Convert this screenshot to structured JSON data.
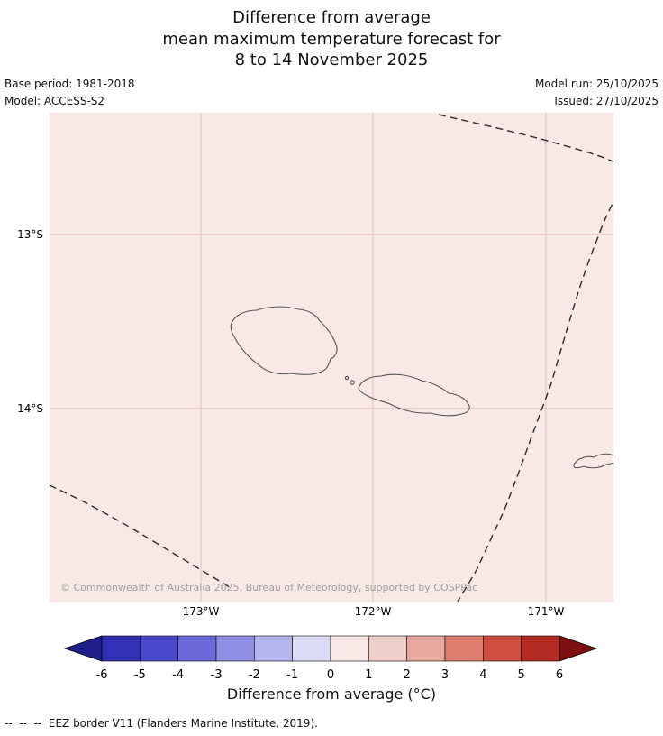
{
  "title": {
    "line1": "Difference from average",
    "line2": "mean maximum temperature forecast for",
    "line3": "8 to 14 November 2025"
  },
  "meta": {
    "base_period": "Base period: 1981-2018",
    "model": "Model: ACCESS-S2",
    "model_run": "Model run: 25/10/2025",
    "issued": "Issued: 27/10/2025"
  },
  "map": {
    "background_color": "#f8e9e6",
    "yticks": [
      "13°S",
      "14°S"
    ],
    "xticks": [
      "173°W",
      "172°W",
      "171°W"
    ],
    "copyright": "© Commonwealth of Australia 2025, Bureau of Meteorology, supported by COSPPac",
    "gridline_color": "#dcb9b9",
    "eez_border_color": "#2b2b2b",
    "coastline_color": "#555555"
  },
  "chart_data": {
    "type": "map",
    "title": "Difference from average mean maximum temperature forecast for 8 to 14 November 2025",
    "region": "Samoa / nearby islands, approx 173.9°W–170.6°W, 12.3°S–15.1°S",
    "lat_ticks": [
      "13°S",
      "14°S"
    ],
    "lon_ticks": [
      "173°W",
      "172°W",
      "171°W"
    ],
    "anomaly_field": "uniform pale pink across whole shown domain, approx 0 to +1 °C",
    "overlays": [
      "coastlines of Savai'i, Upolu, Tutuila and small islets",
      "dashed EEZ boundary lines"
    ],
    "colorbar": {
      "label": "Difference from average (°C)",
      "ticks": [
        -6,
        -5,
        -4,
        -3,
        -2,
        -1,
        0,
        1,
        2,
        3,
        4,
        5,
        6
      ],
      "cell_colors": [
        "#3232b4",
        "#4a4ace",
        "#6a6ada",
        "#8e8ee4",
        "#b4b4ee",
        "#dcdcf6",
        "#f8e9e6",
        "#f0cfc8",
        "#e7a89e",
        "#dd7d70",
        "#ce4f42",
        "#b42b24"
      ],
      "under_color": "#1f1f8c",
      "over_color": "#7c100e",
      "orientation": "horizontal"
    }
  },
  "footer": {
    "eez_note": "--  --  --  EEZ border V11 (Flanders Marine Institute, 2019)."
  },
  "colorbar_label": "Difference from average (°C)"
}
